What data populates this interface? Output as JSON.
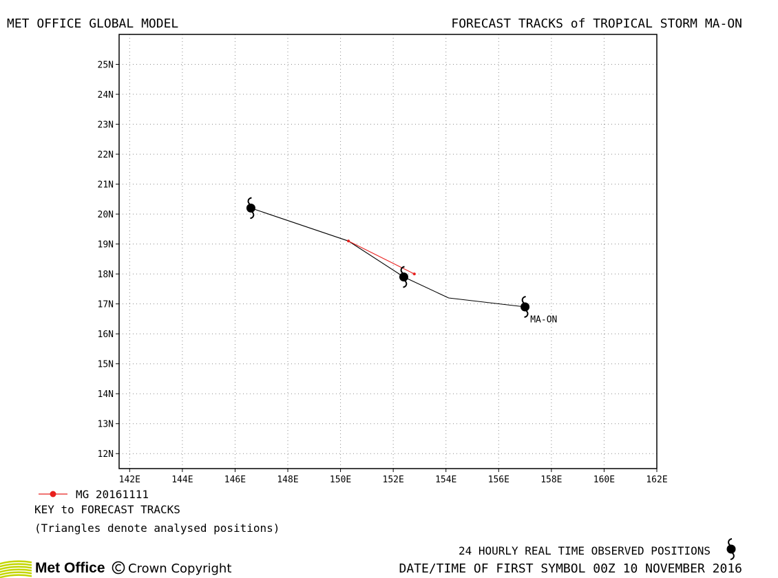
{
  "header": {
    "left_title": "MET OFFICE GLOBAL MODEL",
    "right_title": "FORECAST TRACKS of TROPICAL STORM MA-ON"
  },
  "chart_data": {
    "type": "line",
    "x_axis": {
      "range": [
        141.6,
        162
      ],
      "ticks": [
        142,
        144,
        146,
        148,
        150,
        152,
        154,
        156,
        158,
        160,
        162
      ],
      "tick_labels": [
        "142E",
        "144E",
        "146E",
        "148E",
        "150E",
        "152E",
        "154E",
        "156E",
        "158E",
        "160E",
        "162E"
      ]
    },
    "y_axis": {
      "range": [
        11.5,
        26.0
      ],
      "ticks": [
        12,
        13,
        14,
        15,
        16,
        17,
        18,
        19,
        20,
        21,
        22,
        23,
        24,
        25
      ],
      "tick_labels": [
        "12N",
        "13N",
        "14N",
        "15N",
        "16N",
        "17N",
        "18N",
        "19N",
        "20N",
        "21N",
        "22N",
        "23N",
        "24N",
        "25N"
      ]
    },
    "grid": true,
    "series": [
      {
        "role": "observed",
        "color": "#000000",
        "points": [
          {
            "lon": 157.0,
            "lat": 16.9
          },
          {
            "lon": 154.1,
            "lat": 17.2
          },
          {
            "lon": 152.4,
            "lat": 17.9
          },
          {
            "lon": 150.3,
            "lat": 19.1
          },
          {
            "lon": 146.6,
            "lat": 20.2
          }
        ],
        "symbols": [
          {
            "lon": 157.0,
            "lat": 16.9
          },
          {
            "lon": 152.4,
            "lat": 17.9
          },
          {
            "lon": 146.6,
            "lat": 20.2
          }
        ]
      },
      {
        "name": "MG 20161111",
        "color": "#e8201e",
        "points": [
          {
            "lon": 152.8,
            "lat": 18.0
          },
          {
            "lon": 150.3,
            "lat": 19.1
          }
        ]
      }
    ],
    "annotations": [
      {
        "text": "MA-ON",
        "lon": 157.2,
        "lat": 16.5
      }
    ]
  },
  "legend": {
    "model_entry": "MG 20161111",
    "title": "KEY to FORECAST TRACKS",
    "note": "(Triangles denote analysed positions)"
  },
  "footer": {
    "observed_text": "24 HOURLY REAL TIME OBSERVED POSITIONS",
    "date_text": "DATE/TIME OF FIRST SYMBOL 00Z 10 NOVEMBER 2016",
    "logo_text": "Met Office",
    "copyright": "Crown Copyright",
    "logo_color": "#c3d600"
  }
}
